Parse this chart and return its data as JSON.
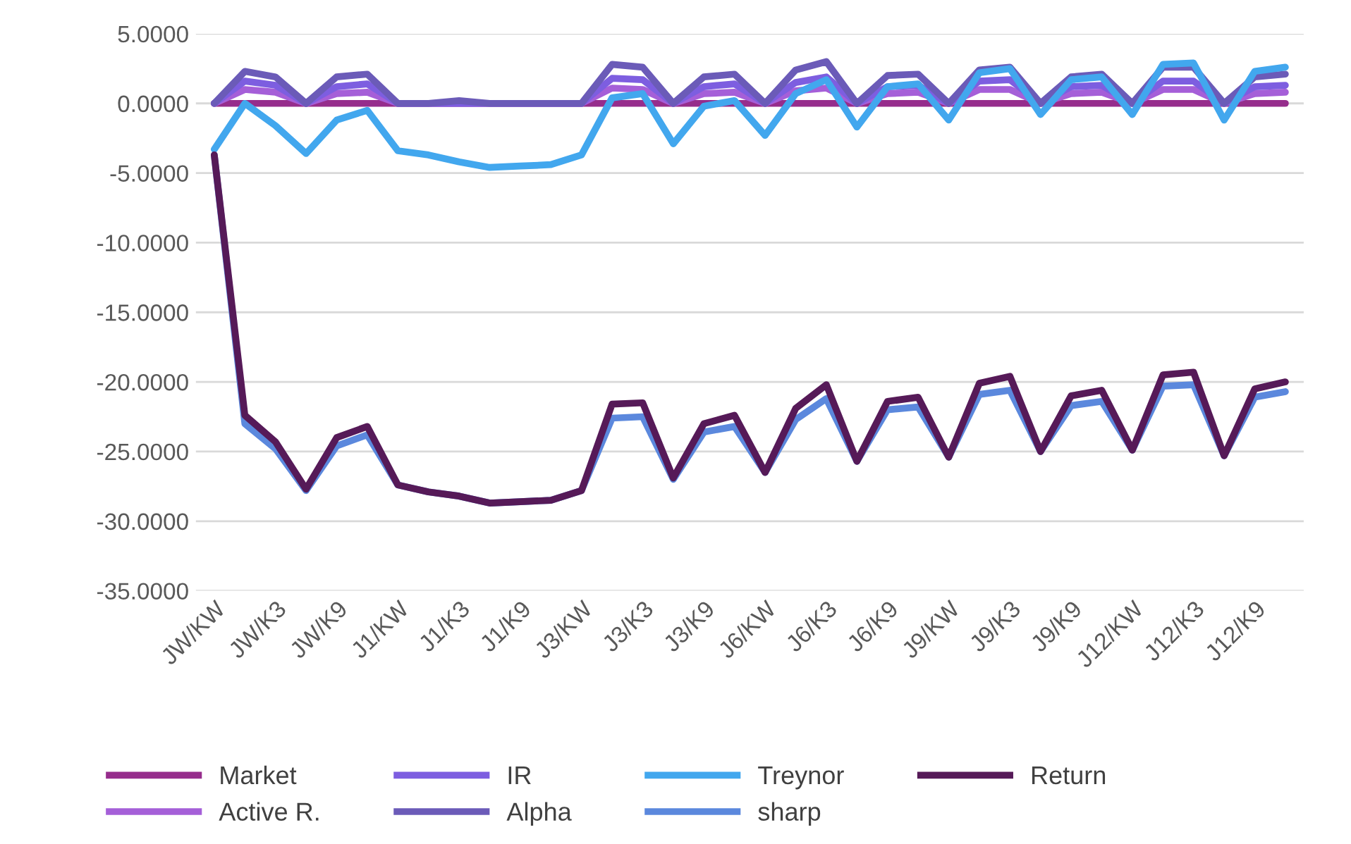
{
  "chart_data": {
    "type": "line",
    "categories": [
      "JW/KW",
      null,
      "JW/K3",
      null,
      "JW/K9",
      null,
      "J1/KW",
      null,
      "J1/K3",
      null,
      "J1/K9",
      null,
      "J3/KW",
      null,
      "J3/K3",
      null,
      "J3/K9",
      null,
      "J6/KW",
      null,
      "J6/K3",
      null,
      "J6/K9",
      null,
      "J9/KW",
      null,
      "J9/K3",
      null,
      "J9/K9",
      null,
      "J12/KW",
      null,
      "J12/K3",
      null,
      "J12/K9",
      null
    ],
    "series": [
      {
        "name": "Market",
        "color": "#962d8c",
        "values": [
          0,
          0,
          0,
          0,
          0,
          0,
          0,
          0,
          0,
          0,
          0,
          0,
          0,
          0,
          0,
          0,
          0,
          0,
          0,
          0,
          0,
          0,
          0,
          0,
          0,
          0,
          0,
          0,
          0,
          0,
          0,
          0,
          0,
          0,
          0,
          0
        ]
      },
      {
        "name": "Active R.",
        "color": "#a55fd8",
        "values": [
          0,
          1.0,
          0.8,
          0,
          0.7,
          0.8,
          0,
          0,
          0,
          0,
          0,
          0,
          0,
          1.1,
          1.0,
          0,
          0.7,
          0.8,
          0,
          0.9,
          1.1,
          0,
          0.7,
          0.8,
          0,
          1.0,
          1.0,
          0,
          0.7,
          0.8,
          0,
          1.0,
          1.0,
          0,
          0.7,
          0.8
        ]
      },
      {
        "name": "IR",
        "color": "#7d5ee0",
        "values": [
          0,
          1.6,
          1.3,
          0,
          1.2,
          1.4,
          0,
          0,
          0,
          0,
          0,
          0,
          0,
          1.8,
          1.7,
          0,
          1.2,
          1.4,
          0,
          1.5,
          1.9,
          0,
          1.2,
          1.3,
          0,
          1.6,
          1.7,
          0,
          1.2,
          1.3,
          0,
          1.6,
          1.6,
          0,
          1.2,
          1.3
        ]
      },
      {
        "name": "Alpha",
        "color": "#6b5bb8",
        "values": [
          0,
          2.3,
          1.9,
          0,
          1.9,
          2.1,
          0,
          0,
          0.2,
          0,
          0,
          0,
          0,
          2.8,
          2.6,
          0,
          1.9,
          2.1,
          0,
          2.4,
          3.0,
          0,
          2.0,
          2.1,
          0,
          2.4,
          2.6,
          0,
          1.9,
          2.1,
          0,
          2.6,
          2.6,
          0,
          1.9,
          2.1
        ]
      },
      {
        "name": "Treynor",
        "color": "#42a7ee",
        "values": [
          -3.3,
          0,
          -1.6,
          -3.6,
          -1.2,
          -0.5,
          -3.4,
          -3.7,
          -4.2,
          -4.6,
          -4.5,
          -4.4,
          -3.7,
          0.4,
          0.7,
          -2.9,
          -0.2,
          0.2,
          -2.3,
          0.7,
          1.7,
          -1.7,
          1.2,
          1.4,
          -1.2,
          2.2,
          2.5,
          -0.8,
          1.7,
          1.9,
          -0.8,
          2.8,
          2.9,
          -1.2,
          2.3,
          2.6
        ]
      },
      {
        "name": "sharp",
        "color": "#5b88dd",
        "values": [
          -3.7,
          -23.0,
          -24.8,
          -27.8,
          -24.6,
          -23.8,
          -27.4,
          -27.9,
          -28.2,
          -28.7,
          -28.6,
          -28.5,
          -27.8,
          -22.6,
          -22.5,
          -27.0,
          -23.6,
          -23.2,
          -26.5,
          -22.7,
          -21.2,
          -25.7,
          -22.0,
          -21.8,
          -25.4,
          -20.9,
          -20.6,
          -25.0,
          -21.7,
          -21.4,
          -24.9,
          -20.3,
          -20.2,
          -25.3,
          -21.1,
          -20.7
        ]
      },
      {
        "name": "Return",
        "color": "#561a58",
        "values": [
          -3.7,
          -22.4,
          -24.3,
          -27.7,
          -24.0,
          -23.2,
          -27.4,
          -27.9,
          -28.2,
          -28.7,
          -28.6,
          -28.5,
          -27.8,
          -21.6,
          -21.5,
          -26.9,
          -23.0,
          -22.4,
          -26.5,
          -21.9,
          -20.2,
          -25.7,
          -21.4,
          -21.1,
          -25.4,
          -20.1,
          -19.6,
          -25.0,
          -21.0,
          -20.6,
          -24.9,
          -19.5,
          -19.3,
          -25.3,
          -20.5,
          -20.0
        ]
      }
    ],
    "ylim": [
      -35,
      5
    ],
    "yticks": [
      {
        "value": 5,
        "label": "5.0000"
      },
      {
        "value": 0,
        "label": "0.0000"
      },
      {
        "value": -5,
        "label": "-5.0000"
      },
      {
        "value": -10,
        "label": "-10.0000"
      },
      {
        "value": -15,
        "label": "-15.0000"
      },
      {
        "value": -20,
        "label": "-20.0000"
      },
      {
        "value": -25,
        "label": "-25.0000"
      },
      {
        "value": -30,
        "label": "-30.0000"
      },
      {
        "value": -35,
        "label": "-35.0000"
      }
    ],
    "grid": "y",
    "legend": "bottom",
    "marker": "none",
    "line_style": "solid"
  }
}
